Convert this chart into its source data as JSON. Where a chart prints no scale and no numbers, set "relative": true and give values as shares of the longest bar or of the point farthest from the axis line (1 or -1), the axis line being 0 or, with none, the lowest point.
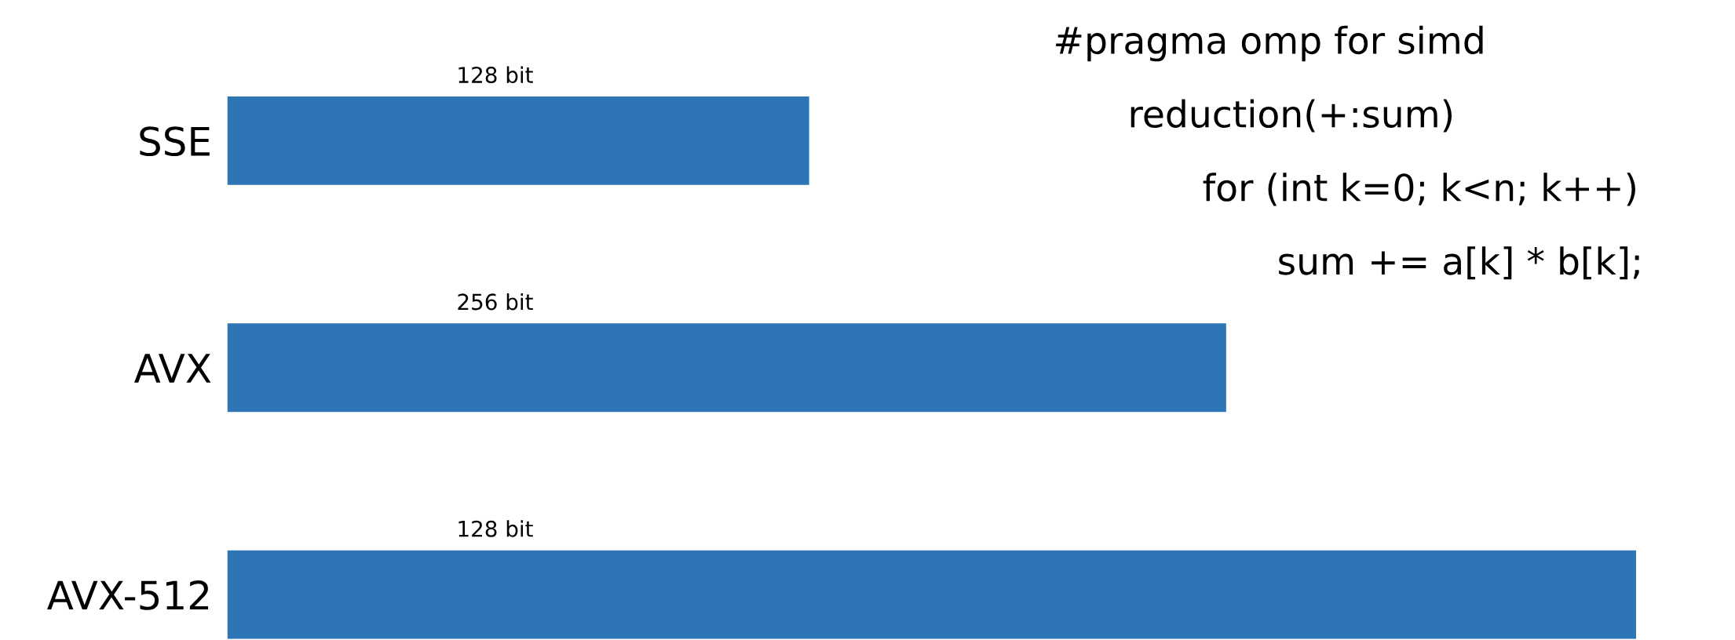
{
  "chart_data": {
    "type": "bar",
    "orientation": "horizontal",
    "relative": true,
    "categories": [
      "SSE",
      "AVX",
      "AVX-512"
    ],
    "values": [
      0.413,
      0.709,
      1
    ],
    "color": "#2e75b6",
    "annotations": [
      "128 bit",
      "256 bit",
      "128 bit",
      "#pragma omp for simd",
      "reduction(+:sum)",
      "for (int k=0; k<n; k++)",
      "sum += a[k] * b[k];"
    ],
    "grid": false,
    "legend": false,
    "tick_labels": "y"
  }
}
